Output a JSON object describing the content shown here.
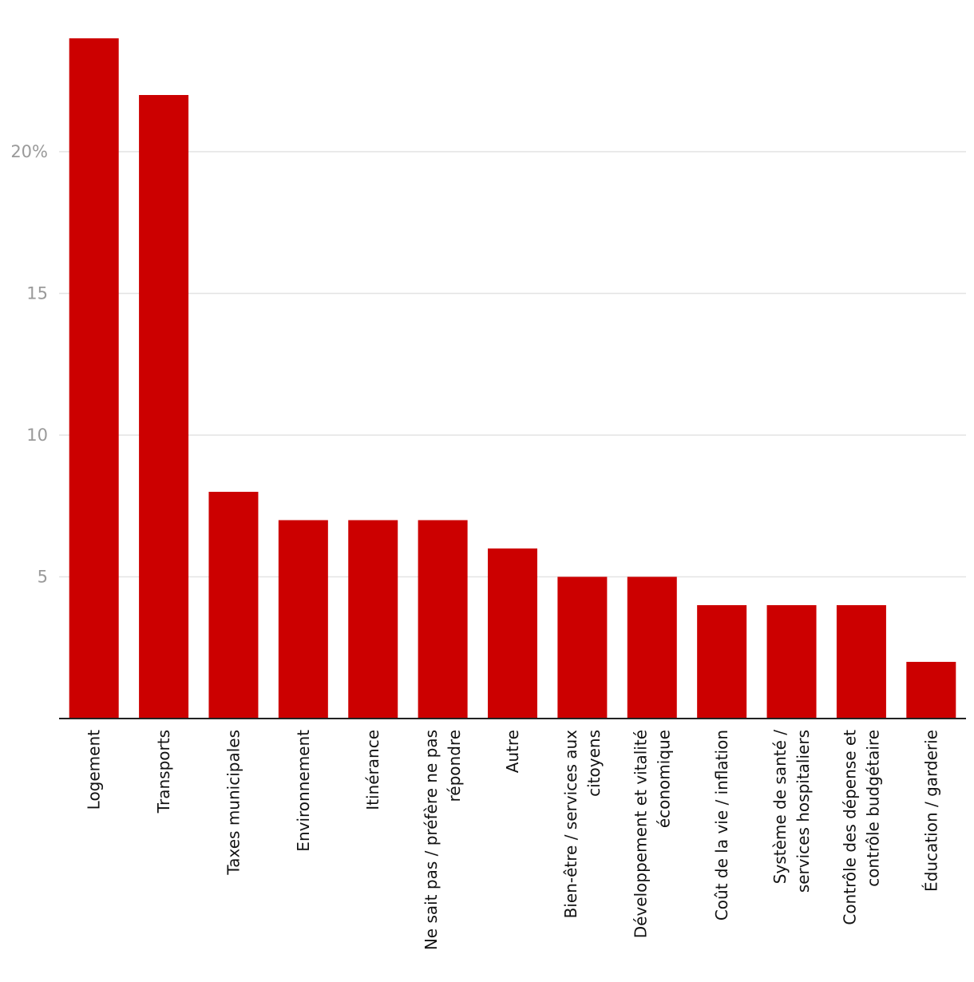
{
  "chart_data": {
    "type": "bar",
    "title": "",
    "xlabel": "",
    "ylabel": "",
    "ylim": [
      0,
      24
    ],
    "yticks": [
      5,
      10,
      15,
      20
    ],
    "ytick_labels": [
      "5",
      "10",
      "15",
      "20%"
    ],
    "grid": true,
    "bar_color": "#cc0000",
    "categories": [
      "Logement",
      "Transports",
      "Taxes municipales",
      "Environnement",
      "Itinérance",
      "Ne sait pas / préfère ne pas répondre",
      "Autre",
      "Bien-être / services aux citoyens",
      "Développement et vitalité économique",
      "Coût de la vie / inflation",
      "Système de santé / services hospitaliers",
      "Contrôle des dépense et contrôle budgétaire",
      "Éducation / garderie"
    ],
    "category_lines": [
      [
        "Logement"
      ],
      [
        "Transports"
      ],
      [
        "Taxes municipales"
      ],
      [
        "Environnement"
      ],
      [
        "Itinérance"
      ],
      [
        "Ne sait pas / préfère ne pas",
        "répondre"
      ],
      [
        "Autre"
      ],
      [
        "Bien-être / services aux",
        "citoyens"
      ],
      [
        "Développement et vitalité",
        "économique"
      ],
      [
        "Coût de la vie / inflation"
      ],
      [
        "Système de santé /",
        "services hospitaliers"
      ],
      [
        "Contrôle des dépense et",
        "contrôle budgétaire"
      ],
      [
        "Éducation / garderie"
      ]
    ],
    "values": [
      24,
      22,
      8,
      7,
      7,
      7,
      6,
      5,
      5,
      4,
      4,
      4,
      2
    ]
  }
}
